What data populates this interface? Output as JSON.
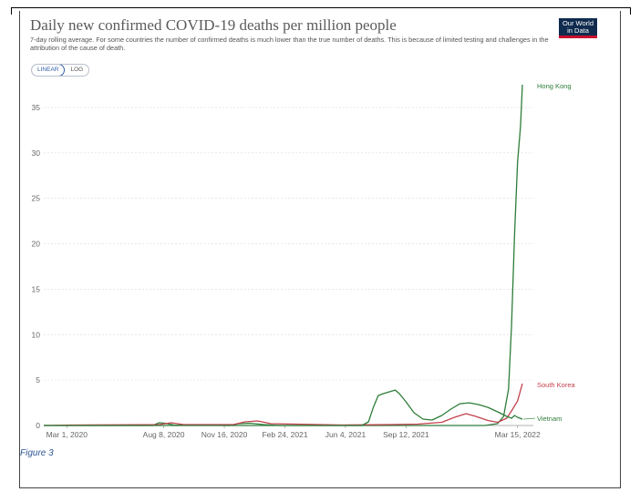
{
  "chart_data": {
    "type": "line",
    "title": "Daily new confirmed COVID-19 deaths per million people",
    "subtitle": "7-day rolling average. For some countries the number of confirmed deaths is much lower than the true number of deaths. This is because of limited testing and challenges in the attribution of the cause of death.",
    "logo_text": [
      "Our World",
      "in Data"
    ],
    "scale_options": [
      "LINEAR",
      "LOG"
    ],
    "active_scale": "LINEAR",
    "xlabel": "",
    "ylabel": "",
    "x_range": [
      "2020-01-23",
      "2022-04-10"
    ],
    "ylim": [
      0,
      37.5
    ],
    "yticks": [
      0,
      5,
      10,
      15,
      20,
      25,
      30,
      35
    ],
    "xticks": [
      {
        "date": "2020-03-01",
        "label": "Mar 1, 2020"
      },
      {
        "date": "2020-08-08",
        "label": "Aug 8, 2020"
      },
      {
        "date": "2020-11-16",
        "label": "Nov 16, 2020"
      },
      {
        "date": "2021-02-24",
        "label": "Feb 24, 2021"
      },
      {
        "date": "2021-06-04",
        "label": "Jun 4, 2021"
      },
      {
        "date": "2021-09-12",
        "label": "Sep 12, 2021"
      },
      {
        "date": "2022-03-15",
        "label": "Mar 15, 2022"
      }
    ],
    "series": [
      {
        "name": "Hong Kong",
        "color": "#2e7d3a",
        "points": [
          [
            "2020-01-23",
            0
          ],
          [
            "2020-07-20",
            0
          ],
          [
            "2020-08-01",
            0.3
          ],
          [
            "2020-08-10",
            0.25
          ],
          [
            "2020-08-25",
            0.05
          ],
          [
            "2020-11-25",
            0
          ],
          [
            "2020-12-10",
            0.2
          ],
          [
            "2020-12-28",
            0.25
          ],
          [
            "2021-01-20",
            0.1
          ],
          [
            "2021-02-15",
            0
          ],
          [
            "2022-01-20",
            0
          ],
          [
            "2022-02-10",
            0.2
          ],
          [
            "2022-02-20",
            1.0
          ],
          [
            "2022-02-28",
            4.0
          ],
          [
            "2022-03-05",
            11.0
          ],
          [
            "2022-03-10",
            21.0
          ],
          [
            "2022-03-15",
            29.0
          ],
          [
            "2022-03-20",
            33.0
          ],
          [
            "2022-03-23",
            37.5
          ]
        ]
      },
      {
        "name": "South Korea",
        "color": "#c2414d",
        "points": [
          [
            "2020-01-23",
            0
          ],
          [
            "2020-03-10",
            0.05
          ],
          [
            "2020-08-01",
            0.1
          ],
          [
            "2020-08-20",
            0.3
          ],
          [
            "2020-09-10",
            0.1
          ],
          [
            "2020-12-01",
            0.1
          ],
          [
            "2020-12-20",
            0.4
          ],
          [
            "2021-01-10",
            0.5
          ],
          [
            "2021-02-01",
            0.2
          ],
          [
            "2021-06-01",
            0.05
          ],
          [
            "2021-08-15",
            0.1
          ],
          [
            "2021-10-01",
            0.15
          ],
          [
            "2021-11-10",
            0.35
          ],
          [
            "2021-12-01",
            0.9
          ],
          [
            "2021-12-20",
            1.3
          ],
          [
            "2022-01-05",
            1.0
          ],
          [
            "2022-01-25",
            0.55
          ],
          [
            "2022-02-10",
            0.35
          ],
          [
            "2022-02-25",
            0.8
          ],
          [
            "2022-03-05",
            1.6
          ],
          [
            "2022-03-15",
            2.7
          ],
          [
            "2022-03-23",
            4.6
          ]
        ]
      },
      {
        "name": "Vietnam",
        "color": "#2e7d3a",
        "points": [
          [
            "2020-01-23",
            0
          ],
          [
            "2021-07-01",
            0
          ],
          [
            "2021-07-12",
            0.4
          ],
          [
            "2021-07-20",
            2.0
          ],
          [
            "2021-07-28",
            3.3
          ],
          [
            "2021-08-05",
            3.5
          ],
          [
            "2021-08-15",
            3.7
          ],
          [
            "2021-08-25",
            3.9
          ],
          [
            "2021-09-01",
            3.5
          ],
          [
            "2021-09-12",
            2.6
          ],
          [
            "2021-09-25",
            1.4
          ],
          [
            "2021-10-10",
            0.7
          ],
          [
            "2021-10-25",
            0.6
          ],
          [
            "2021-11-10",
            1.1
          ],
          [
            "2021-11-25",
            1.8
          ],
          [
            "2021-12-10",
            2.4
          ],
          [
            "2021-12-25",
            2.5
          ],
          [
            "2022-01-10",
            2.3
          ],
          [
            "2022-01-25",
            2.0
          ],
          [
            "2022-02-10",
            1.5
          ],
          [
            "2022-02-25",
            1.0
          ],
          [
            "2022-03-05",
            0.8
          ],
          [
            "2022-03-10",
            1.1
          ],
          [
            "2022-03-15",
            0.9
          ],
          [
            "2022-03-23",
            0.7
          ]
        ]
      }
    ]
  },
  "figure_caption": "Figure 3"
}
